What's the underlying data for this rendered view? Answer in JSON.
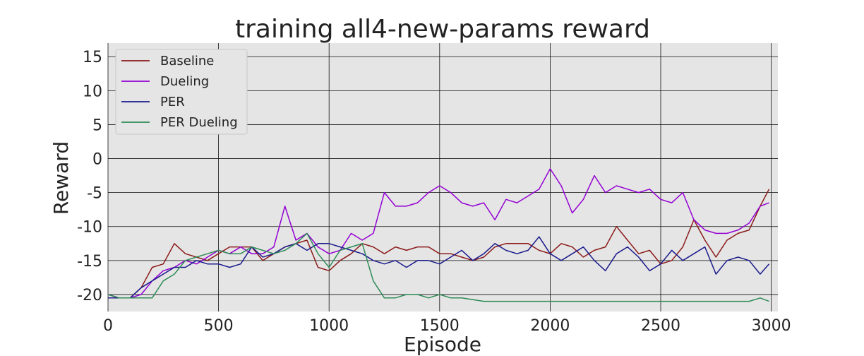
{
  "chart_data": {
    "type": "line",
    "title": "training all4-new-params reward",
    "xlabel": "Episode",
    "ylabel": "Reward",
    "xlim": [
      0,
      3030
    ],
    "ylim": [
      -22.5,
      17
    ],
    "xticks": [
      0,
      500,
      1000,
      1500,
      2000,
      2500,
      3000
    ],
    "yticks": [
      15,
      10,
      5,
      0,
      -5,
      -10,
      -15,
      -20
    ],
    "grid": true,
    "legend_position": "top-left",
    "series": [
      {
        "name": "Baseline",
        "color": "#8b1a1a",
        "x": [
          0,
          50,
          100,
          150,
          200,
          250,
          300,
          350,
          400,
          450,
          500,
          550,
          600,
          650,
          700,
          750,
          800,
          850,
          900,
          950,
          1000,
          1050,
          1100,
          1150,
          1200,
          1250,
          1300,
          1350,
          1400,
          1450,
          1500,
          1550,
          1600,
          1650,
          1700,
          1750,
          1800,
          1850,
          1900,
          1950,
          2000,
          2050,
          2100,
          2150,
          2200,
          2250,
          2300,
          2350,
          2400,
          2450,
          2500,
          2550,
          2600,
          2650,
          2700,
          2750,
          2800,
          2850,
          2900,
          2950,
          2990
        ],
        "y": [
          -20,
          -20.5,
          -20.5,
          -19,
          -16,
          -15.5,
          -12.5,
          -14,
          -14.5,
          -15,
          -14,
          -13,
          -13,
          -13,
          -15,
          -14,
          -13,
          -12.5,
          -12,
          -16,
          -16.5,
          -15,
          -14,
          -12.5,
          -13,
          -14,
          -13,
          -13.5,
          -13,
          -13,
          -14,
          -14,
          -14.5,
          -15,
          -14.5,
          -13,
          -12.5,
          -12.5,
          -12.5,
          -13.5,
          -14,
          -12.5,
          -13,
          -14.5,
          -13.5,
          -13,
          -10,
          -12,
          -14,
          -13.5,
          -15.5,
          -15,
          -13,
          -9,
          -12,
          -14.5,
          -12,
          -11,
          -10.5,
          -7,
          -4.5
        ]
      },
      {
        "name": "Dueling",
        "color": "#9400d3",
        "x": [
          0,
          50,
          100,
          150,
          200,
          250,
          300,
          350,
          400,
          450,
          500,
          550,
          600,
          650,
          700,
          750,
          800,
          850,
          900,
          950,
          1000,
          1050,
          1100,
          1150,
          1200,
          1250,
          1300,
          1350,
          1400,
          1450,
          1500,
          1550,
          1600,
          1650,
          1700,
          1750,
          1800,
          1850,
          1900,
          1950,
          2000,
          2050,
          2100,
          2150,
          2200,
          2250,
          2300,
          2350,
          2400,
          2450,
          2500,
          2550,
          2600,
          2650,
          2700,
          2750,
          2800,
          2850,
          2900,
          2950,
          2990
        ],
        "y": [
          -20,
          -20.5,
          -20.5,
          -20,
          -18,
          -16.5,
          -16,
          -15,
          -15.5,
          -14.5,
          -13.5,
          -14,
          -13,
          -14,
          -14,
          -13,
          -7,
          -12,
          -11,
          -13,
          -14,
          -13.5,
          -11,
          -12,
          -11,
          -5,
          -7,
          -7,
          -6.5,
          -5,
          -4,
          -5,
          -6.5,
          -7,
          -6.5,
          -9,
          -6,
          -6.5,
          -5.5,
          -4.5,
          -1.5,
          -4,
          -8,
          -6,
          -2.5,
          -5,
          -4,
          -4.5,
          -5,
          -4.5,
          -6,
          -6.5,
          -5,
          -9,
          -10.5,
          -11,
          -11,
          -10.5,
          -9.5,
          -7,
          -6.5
        ]
      },
      {
        "name": "PER",
        "color": "#1a1a8c",
        "x": [
          0,
          50,
          100,
          150,
          200,
          250,
          300,
          350,
          400,
          450,
          500,
          550,
          600,
          650,
          700,
          750,
          800,
          850,
          900,
          950,
          1000,
          1050,
          1100,
          1150,
          1200,
          1250,
          1300,
          1350,
          1400,
          1450,
          1500,
          1550,
          1600,
          1650,
          1700,
          1750,
          1800,
          1850,
          1900,
          1950,
          2000,
          2050,
          2100,
          2150,
          2200,
          2250,
          2300,
          2350,
          2400,
          2450,
          2500,
          2550,
          2600,
          2650,
          2700,
          2750,
          2800,
          2850,
          2900,
          2950,
          2990
        ],
        "y": [
          -20.5,
          -20.5,
          -20.5,
          -19,
          -18,
          -17,
          -16,
          -16,
          -15,
          -15.5,
          -15.5,
          -16,
          -15.5,
          -13,
          -14.5,
          -14,
          -13,
          -12.5,
          -13.5,
          -12.5,
          -12.5,
          -13,
          -13.5,
          -14,
          -15,
          -15.5,
          -15,
          -16,
          -15,
          -15,
          -15.5,
          -14.5,
          -13.5,
          -15,
          -14,
          -12.5,
          -13.5,
          -14,
          -13.5,
          -11.5,
          -14,
          -15,
          -14,
          -13,
          -15,
          -16.5,
          -14,
          -13,
          -14.5,
          -16.5,
          -15.5,
          -13.5,
          -15,
          -14,
          -13,
          -17,
          -15,
          -14.5,
          -15,
          -17,
          -15.5
        ]
      },
      {
        "name": "PER Dueling",
        "color": "#2e8b57",
        "x": [
          0,
          50,
          100,
          150,
          200,
          250,
          300,
          350,
          400,
          450,
          500,
          550,
          600,
          650,
          700,
          750,
          800,
          850,
          900,
          950,
          1000,
          1050,
          1100,
          1150,
          1200,
          1250,
          1300,
          1350,
          1400,
          1450,
          1500,
          1550,
          1600,
          1700,
          1800,
          1900,
          2000,
          2100,
          2200,
          2300,
          2400,
          2500,
          2600,
          2700,
          2800,
          2900,
          2950,
          2990
        ],
        "y": [
          -20,
          -20.5,
          -20.5,
          -20.5,
          -20.5,
          -18,
          -17,
          -15,
          -14.5,
          -14,
          -13.5,
          -14,
          -14,
          -13,
          -13.5,
          -14,
          -13.5,
          -12.5,
          -11,
          -14,
          -16,
          -13.5,
          -13,
          -12.5,
          -18,
          -20.5,
          -20.5,
          -20,
          -20,
          -20.5,
          -20,
          -20.5,
          -20.5,
          -21,
          -21,
          -21,
          -21,
          -21,
          -21,
          -21,
          -21,
          -21,
          -21,
          -21,
          -21,
          -21,
          -20.5,
          -21
        ]
      }
    ]
  }
}
